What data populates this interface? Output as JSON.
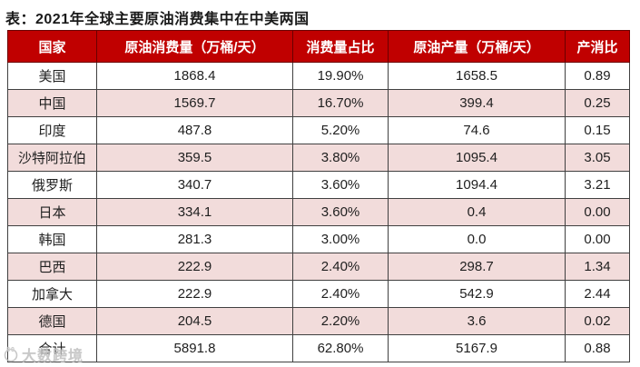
{
  "title": "表：2021年全球主要原油消费集中在中美两国",
  "watermark_text": "大数跨境",
  "colors": {
    "header_bg": "#c00000",
    "header_text": "#ffffff",
    "row_alt_bg": "#f2dcdb",
    "row_bg": "#ffffff",
    "cell_border": "#404040",
    "header_border": "#6b0000",
    "watermark": "#bfbfbf"
  },
  "chart_data": {
    "type": "table",
    "title": "表：2021年全球主要原油消费集中在中美两国",
    "columns": [
      "国家",
      "原油消费量（万桶/天）",
      "消费量占比",
      "原油产量（万桶/天）",
      "产消比"
    ],
    "rows": [
      [
        "美国",
        "1868.4",
        "19.90%",
        "1658.5",
        "0.89"
      ],
      [
        "中国",
        "1569.7",
        "16.70%",
        "399.4",
        "0.25"
      ],
      [
        "印度",
        "487.8",
        "5.20%",
        "74.6",
        "0.15"
      ],
      [
        "沙特阿拉伯",
        "359.5",
        "3.80%",
        "1095.4",
        "3.05"
      ],
      [
        "俄罗斯",
        "340.7",
        "3.60%",
        "1094.4",
        "3.21"
      ],
      [
        "日本",
        "334.1",
        "3.60%",
        "0.4",
        "0.00"
      ],
      [
        "韩国",
        "281.3",
        "3.00%",
        "0.0",
        "0.00"
      ],
      [
        "巴西",
        "222.9",
        "2.40%",
        "298.7",
        "1.34"
      ],
      [
        "加拿大",
        "222.9",
        "2.40%",
        "542.9",
        "2.44"
      ],
      [
        "德国",
        "204.5",
        "2.20%",
        "3.6",
        "0.02"
      ],
      [
        "合计",
        "5891.8",
        "62.80%",
        "5167.9",
        "0.88"
      ]
    ],
    "layout": {
      "alternating_row_shading": true,
      "first_data_row_bg": "white",
      "header_style": "red-bg-white-text"
    }
  }
}
